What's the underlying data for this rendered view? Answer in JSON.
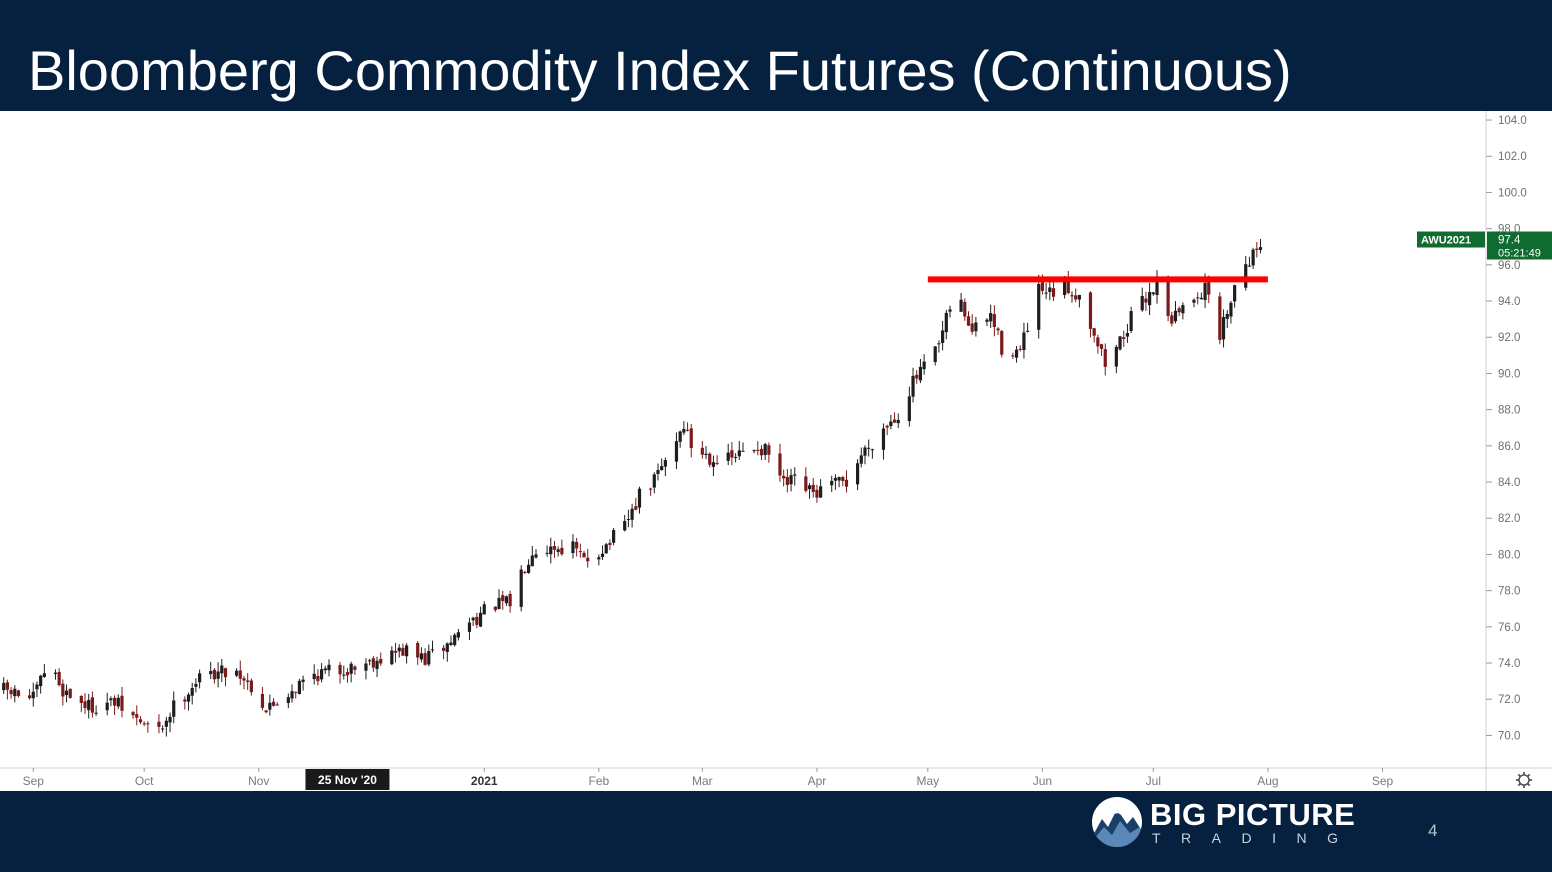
{
  "slide": {
    "title": "Bloomberg Commodity Index Futures (Continuous)",
    "page_number": "4"
  },
  "logo": {
    "main": "BIG PICTURE",
    "sub": "TRADING"
  },
  "colors": {
    "navy": "#06203f",
    "up_candle": "#1e1e1e",
    "down_candle": "#7a1a1a",
    "resistance": "#ff0000",
    "price_badge": "#0f6b2f"
  },
  "chart_data": {
    "type": "candlestick",
    "symbol": "AWU2021",
    "last_price": "97.4",
    "countdown": "05:21:49",
    "y_ticks": [
      "104.0",
      "102.0",
      "100.0",
      "98.0",
      "96.0",
      "94.0",
      "92.0",
      "90.0",
      "88.0",
      "86.0",
      "84.0",
      "82.0",
      "80.0",
      "78.0",
      "76.0",
      "74.0",
      "72.0",
      "70.0"
    ],
    "ylim": [
      68.2,
      104.5
    ],
    "x_range": [
      "2020-08-23",
      "2021-09-29"
    ],
    "x_ticks": [
      {
        "label": "Sep",
        "date": "2020-09-01",
        "bold": false
      },
      {
        "label": "Oct",
        "date": "2020-10-01",
        "bold": false
      },
      {
        "label": "Nov",
        "date": "2020-11-01",
        "bold": false
      },
      {
        "label": "2021",
        "date": "2021-01-01",
        "bold": true
      },
      {
        "label": "Feb",
        "date": "2021-02-01",
        "bold": false
      },
      {
        "label": "Mar",
        "date": "2021-03-01",
        "bold": false
      },
      {
        "label": "Apr",
        "date": "2021-04-01",
        "bold": false
      },
      {
        "label": "May",
        "date": "2021-05-01",
        "bold": false
      },
      {
        "label": "Jun",
        "date": "2021-06-01",
        "bold": false
      },
      {
        "label": "Jul",
        "date": "2021-07-01",
        "bold": false
      },
      {
        "label": "Aug",
        "date": "2021-08-01",
        "bold": false
      },
      {
        "label": "Sep",
        "date": "2021-09-01",
        "bold": false
      }
    ],
    "crosshair_label": {
      "label": "25 Nov '20",
      "date": "2020-11-25"
    },
    "resistance_level": {
      "value": 95.2,
      "from": "2021-05-01",
      "to": "2021-08-01"
    },
    "close_path": [
      [
        "2020-08-24",
        72.5
      ],
      [
        "2020-09-01",
        72.0
      ],
      [
        "2020-09-05",
        74.0
      ],
      [
        "2020-09-09",
        72.5
      ],
      [
        "2020-09-16",
        71.6
      ],
      [
        "2020-09-23",
        71.8
      ],
      [
        "2020-09-28",
        71.0
      ],
      [
        "2020-10-01",
        70.6
      ],
      [
        "2020-10-05",
        70.2
      ],
      [
        "2020-10-09",
        71.6
      ],
      [
        "2020-10-15",
        73.0
      ],
      [
        "2020-10-20",
        73.5
      ],
      [
        "2020-10-26",
        73.6
      ],
      [
        "2020-10-31",
        72.5
      ],
      [
        "2020-11-03",
        71.4
      ],
      [
        "2020-11-09",
        72.4
      ],
      [
        "2020-11-16",
        73.4
      ],
      [
        "2020-11-25",
        73.7
      ],
      [
        "2020-12-04",
        74.3
      ],
      [
        "2020-12-10",
        74.7
      ],
      [
        "2020-12-16",
        74.2
      ],
      [
        "2020-12-22",
        75.0
      ],
      [
        "2020-12-28",
        76.3
      ],
      [
        "2021-01-04",
        77.2
      ],
      [
        "2021-01-08",
        77.3
      ],
      [
        "2021-01-11",
        79.0
      ],
      [
        "2021-01-14",
        80.3
      ],
      [
        "2021-01-19",
        80.4
      ],
      [
        "2021-01-25",
        80.4
      ],
      [
        "2021-01-28",
        79.6
      ],
      [
        "2021-02-03",
        80.5
      ],
      [
        "2021-02-08",
        81.5
      ],
      [
        "2021-02-12",
        83.2
      ],
      [
        "2021-02-16",
        84.1
      ],
      [
        "2021-02-19",
        85.2
      ],
      [
        "2021-02-24",
        87.2
      ],
      [
        "2021-02-26",
        86.0
      ],
      [
        "2021-03-03",
        85.4
      ],
      [
        "2021-03-08",
        85.2
      ],
      [
        "2021-03-12",
        85.6
      ],
      [
        "2021-03-16",
        86.0
      ],
      [
        "2021-03-19",
        85.5
      ],
      [
        "2021-03-23",
        83.8
      ],
      [
        "2021-03-26",
        84.0
      ],
      [
        "2021-03-31",
        83.3
      ],
      [
        "2021-04-05",
        83.8
      ],
      [
        "2021-04-09",
        84.0
      ],
      [
        "2021-04-13",
        85.5
      ],
      [
        "2021-04-19",
        87.0
      ],
      [
        "2021-04-23",
        87.8
      ],
      [
        "2021-04-27",
        89.5
      ],
      [
        "2021-04-30",
        90.3
      ],
      [
        "2021-05-04",
        91.5
      ],
      [
        "2021-05-07",
        93.6
      ],
      [
        "2021-05-10",
        93.8
      ],
      [
        "2021-05-13",
        92.3
      ],
      [
        "2021-05-18",
        93.2
      ],
      [
        "2021-05-21",
        91.4
      ],
      [
        "2021-05-26",
        91.2
      ],
      [
        "2021-05-31",
        94.5
      ],
      [
        "2021-06-03",
        94.3
      ],
      [
        "2021-06-07",
        94.8
      ],
      [
        "2021-06-11",
        94.3
      ],
      [
        "2021-06-15",
        92.3
      ],
      [
        "2021-06-18",
        90.5
      ],
      [
        "2021-06-22",
        91.8
      ],
      [
        "2021-06-25",
        93.0
      ],
      [
        "2021-06-30",
        94.5
      ],
      [
        "2021-07-02",
        95.0
      ],
      [
        "2021-07-06",
        93.0
      ],
      [
        "2021-07-09",
        93.6
      ],
      [
        "2021-07-13",
        94.5
      ],
      [
        "2021-07-16",
        94.6
      ],
      [
        "2021-07-19",
        92.0
      ],
      [
        "2021-07-22",
        94.3
      ],
      [
        "2021-07-26",
        96.2
      ],
      [
        "2021-07-28",
        96.6
      ],
      [
        "2021-07-30",
        97.3
      ]
    ]
  }
}
